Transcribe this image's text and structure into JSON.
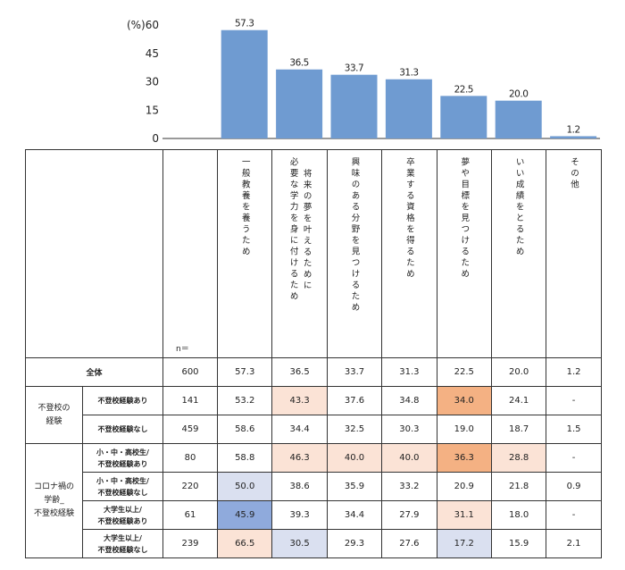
{
  "chart_data": {
    "type": "bar",
    "ylabel": "(%)",
    "ylim": [
      0,
      60
    ],
    "yticks": [
      0,
      15,
      30,
      45,
      60
    ],
    "bar_color": "#6f9bd1",
    "categories": [
      "一般教養を養うため",
      "将来の夢を叶えるために必要な学力を身に付けるため",
      "興味のある分野を見つけるため",
      "卒業する資格を得るため",
      "夢や目標を見つけるため",
      "いい成績をとるため",
      "その他"
    ],
    "values": [
      57.3,
      36.5,
      33.7,
      31.3,
      22.5,
      20.0,
      1.2
    ],
    "data_labels": [
      "57.3",
      "36.5",
      "33.7",
      "31.3",
      "22.5",
      "20.0",
      "1.2"
    ]
  },
  "table": {
    "n_label": "n＝",
    "headers": [
      "一般教養を養うため",
      "将来の夢を叶えるために\n必要な学力を身に付けるため",
      "興味のある分野を見つけるため",
      "卒業する資格を得るため",
      "夢や目標を見つけるため",
      "いい成績をとるため",
      "その他"
    ],
    "total": {
      "label": "全体",
      "n": "600",
      "values": [
        "57.3",
        "36.5",
        "33.7",
        "31.3",
        "22.5",
        "20.0",
        "1.2"
      ]
    },
    "groups": [
      {
        "label": "不登校の\n経験",
        "rows": [
          {
            "label": "不登校経験あり",
            "n": "141",
            "values": [
              "53.2",
              "43.3",
              "37.6",
              "34.8",
              "34.0",
              "24.1",
              "-"
            ],
            "shade": [
              "",
              "lo",
              "",
              "",
              "o",
              "",
              ""
            ]
          },
          {
            "label": "不登校経験なし",
            "n": "459",
            "values": [
              "58.6",
              "34.4",
              "32.5",
              "30.3",
              "19.0",
              "18.7",
              "1.5"
            ],
            "shade": [
              "",
              "",
              "",
              "",
              "",
              "",
              ""
            ]
          }
        ]
      },
      {
        "label": "コロナ禍の\n学齢_\n不登校経験",
        "rows": [
          {
            "label": "小・中・高校生/\n不登校経験あり",
            "n": "80",
            "values": [
              "58.8",
              "46.3",
              "40.0",
              "40.0",
              "36.3",
              "28.8",
              "-"
            ],
            "shade": [
              "",
              "lo",
              "lo",
              "lo",
              "o",
              "lo",
              ""
            ]
          },
          {
            "label": "小・中・高校生/\n不登校経験なし",
            "n": "220",
            "values": [
              "50.0",
              "38.6",
              "35.9",
              "33.2",
              "20.9",
              "21.8",
              "0.9"
            ],
            "shade": [
              "lb",
              "",
              "",
              "",
              "",
              "",
              ""
            ]
          },
          {
            "label": "大学生以上/\n不登校経験あり",
            "n": "61",
            "values": [
              "45.9",
              "39.3",
              "34.4",
              "27.9",
              "31.1",
              "18.0",
              "-"
            ],
            "shade": [
              "b",
              "",
              "",
              "",
              "lo",
              "",
              ""
            ]
          },
          {
            "label": "大学生以上/\n不登校経験なし",
            "n": "239",
            "values": [
              "66.5",
              "30.5",
              "29.3",
              "27.6",
              "17.2",
              "15.9",
              "2.1"
            ],
            "shade": [
              "lo",
              "lb",
              "",
              "",
              "lb",
              "",
              ""
            ]
          }
        ]
      }
    ],
    "shade_colors": {
      "lo": "#fbe3d6",
      "o": "#f4b183",
      "lb": "#dae0f0",
      "b": "#8faadc"
    }
  }
}
